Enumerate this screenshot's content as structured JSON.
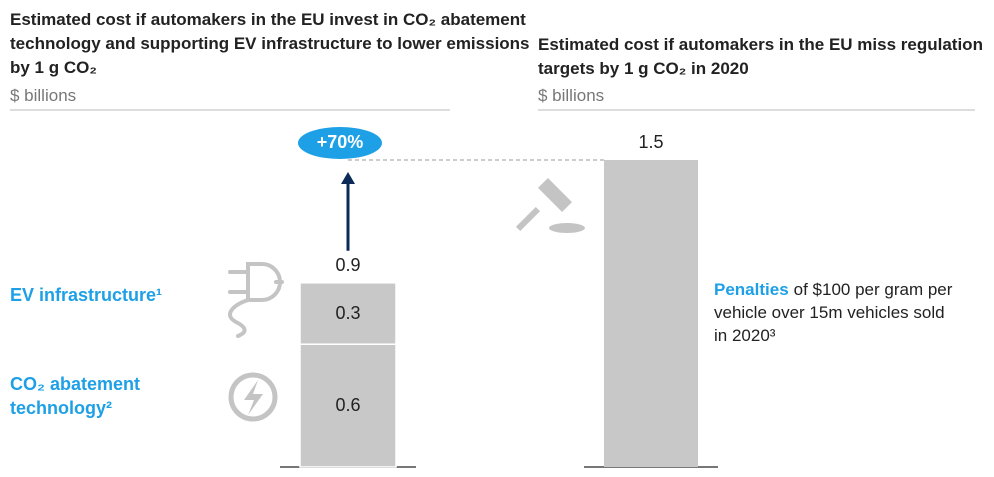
{
  "chart_data": [
    {
      "type": "stacked_bar",
      "title": "Estimated cost if automakers in the EU invest in CO₂ abatement technology and supporting EV infrastructure to lower emissions by 1 g CO₂",
      "subtitle": "$ billions",
      "series": [
        {
          "name": "CO₂ abatement technology²",
          "color": "#c8c8c8",
          "values": [
            0.6
          ]
        },
        {
          "name": "EV infrastructure¹",
          "color": "#c8c8c8",
          "values": [
            0.3
          ]
        }
      ],
      "total": 0.9,
      "annotation": "+70%",
      "accent_color": "#1ea0e6"
    },
    {
      "type": "bar",
      "title": "Estimated cost if automakers in the EU miss regulation targets by 1 g CO₂ in 2020",
      "subtitle": "$ billions",
      "values": [
        1.5
      ],
      "color": "#c8c8c8",
      "annotation": {
        "highlight": "Penalties",
        "text": "of $100 per gram per vehicle over 15m vehicles sold in 2020³"
      },
      "accent_color": "#1ea0e6"
    }
  ]
}
